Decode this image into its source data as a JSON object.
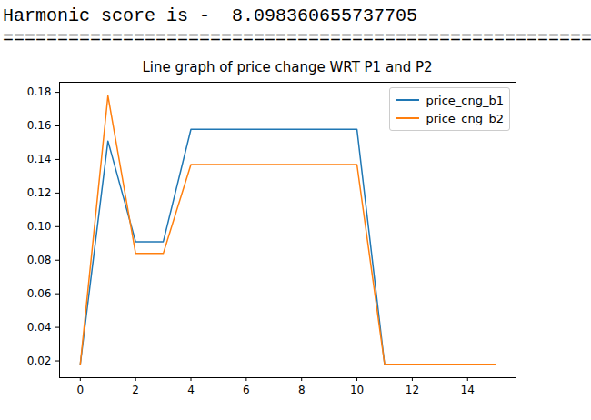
{
  "output_text": [
    "Harmonic score is -  8.098360655737705",
    "======================================================"
  ],
  "chart_data": {
    "type": "line",
    "title": "Line graph of price change WRT P1 and P2",
    "x": [
      0,
      1,
      2,
      3,
      4,
      5,
      6,
      7,
      8,
      9,
      10,
      11,
      12,
      13,
      14,
      15
    ],
    "series": [
      {
        "name": "price_cng_b1",
        "color": "#1f77b4",
        "values": [
          0.018,
          0.151,
          0.091,
          0.091,
          0.158,
          0.158,
          0.158,
          0.158,
          0.158,
          0.158,
          0.158,
          0.018,
          0.018,
          0.018,
          0.018,
          0.018
        ]
      },
      {
        "name": "price_cng_b2",
        "color": "#ff7f0e",
        "values": [
          0.018,
          0.178,
          0.084,
          0.084,
          0.137,
          0.137,
          0.137,
          0.137,
          0.137,
          0.137,
          0.137,
          0.018,
          0.018,
          0.018,
          0.018,
          0.018
        ]
      }
    ],
    "xlim": [
      -0.75,
      15.75
    ],
    "xticks": [
      0,
      2,
      4,
      6,
      8,
      10,
      12,
      14
    ],
    "ylim": [
      0.01,
      0.186
    ],
    "yticks": [
      0.02,
      0.04,
      0.06,
      0.08,
      {
        "value": 0.1,
        "label": "0.10"
      },
      0.12,
      0.14,
      0.16,
      0.18
    ],
    "grid": false,
    "legend": "upper right"
  }
}
